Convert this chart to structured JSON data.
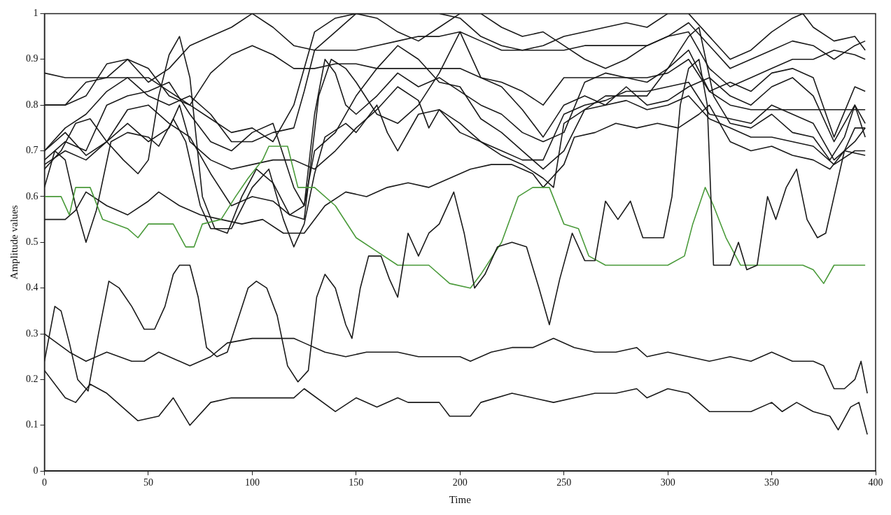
{
  "chart_data": {
    "type": "line",
    "xlabel": "Time",
    "ylabel": "Amplitude values",
    "xlim": [
      0,
      400
    ],
    "ylim": [
      0,
      1
    ],
    "xticks": [
      0,
      50,
      100,
      150,
      200,
      250,
      300,
      350,
      400
    ],
    "yticks": [
      0,
      0.1,
      0.2,
      0.3,
      0.4,
      0.5,
      0.6,
      0.7,
      0.8,
      0.9,
      1
    ],
    "grid": false,
    "legend": false,
    "marker": "none",
    "line_style": "solid",
    "series": [
      {
        "color": "#1a1a1a",
        "x": [
          0,
          10,
          15,
          22,
          30,
          45,
          55,
          62,
          70,
          80,
          90,
          100,
          110,
          120,
          125,
          140,
          150,
          160,
          170,
          175,
          190,
          195,
          205,
          210,
          225,
          235,
          245,
          255,
          265,
          275,
          285,
          290,
          300,
          310,
          320,
          330,
          340,
          350,
          355,
          362,
          370,
          378,
          382,
          388,
          392,
          396
        ],
        "values": [
          0.22,
          0.16,
          0.15,
          0.19,
          0.17,
          0.11,
          0.12,
          0.16,
          0.1,
          0.15,
          0.16,
          0.16,
          0.16,
          0.16,
          0.18,
          0.13,
          0.16,
          0.14,
          0.16,
          0.15,
          0.15,
          0.12,
          0.12,
          0.15,
          0.17,
          0.16,
          0.15,
          0.16,
          0.17,
          0.17,
          0.18,
          0.16,
          0.18,
          0.17,
          0.13,
          0.13,
          0.13,
          0.15,
          0.13,
          0.15,
          0.13,
          0.12,
          0.09,
          0.14,
          0.15,
          0.08
        ]
      },
      {
        "color": "#1a1a1a",
        "x": [
          0,
          12,
          20,
          30,
          42,
          48,
          55,
          70,
          80,
          88,
          100,
          110,
          120,
          125,
          135,
          145,
          155,
          170,
          180,
          190,
          200,
          205,
          215,
          225,
          235,
          245,
          255,
          265,
          275,
          285,
          290,
          300,
          310,
          320,
          330,
          340,
          350,
          360,
          370,
          375,
          380,
          385,
          390,
          393,
          396
        ],
        "values": [
          0.3,
          0.26,
          0.24,
          0.26,
          0.24,
          0.24,
          0.26,
          0.23,
          0.25,
          0.28,
          0.29,
          0.29,
          0.29,
          0.28,
          0.26,
          0.25,
          0.26,
          0.26,
          0.25,
          0.25,
          0.25,
          0.24,
          0.26,
          0.27,
          0.27,
          0.29,
          0.27,
          0.26,
          0.26,
          0.27,
          0.25,
          0.26,
          0.25,
          0.24,
          0.25,
          0.24,
          0.26,
          0.24,
          0.24,
          0.23,
          0.18,
          0.18,
          0.2,
          0.24,
          0.17
        ]
      },
      {
        "color": "#1a1a1a",
        "x": [
          0,
          5,
          8,
          12,
          16,
          21,
          26,
          31,
          36,
          42,
          48,
          53,
          58,
          62,
          65,
          70,
          74,
          78,
          83,
          88,
          93,
          98,
          102,
          107,
          112,
          117,
          122,
          127,
          131,
          135,
          140,
          145,
          148,
          152,
          156,
          162,
          166,
          170,
          175,
          180,
          185,
          190,
          197,
          202,
          207,
          212,
          218,
          225,
          232,
          238,
          243,
          248,
          254,
          260,
          265,
          270,
          276,
          282,
          288,
          298,
          302,
          306,
          310,
          315,
          319,
          322,
          330,
          334,
          338,
          343,
          348,
          352,
          357,
          362,
          367,
          372,
          376,
          380,
          385,
          390,
          395
        ],
        "values": [
          0.24,
          0.36,
          0.35,
          0.28,
          0.2,
          0.175,
          0.3,
          0.415,
          0.4,
          0.36,
          0.31,
          0.31,
          0.36,
          0.43,
          0.45,
          0.45,
          0.38,
          0.27,
          0.25,
          0.26,
          0.33,
          0.4,
          0.415,
          0.4,
          0.34,
          0.23,
          0.195,
          0.22,
          0.38,
          0.43,
          0.4,
          0.32,
          0.29,
          0.4,
          0.47,
          0.47,
          0.42,
          0.38,
          0.52,
          0.47,
          0.52,
          0.54,
          0.61,
          0.52,
          0.4,
          0.43,
          0.49,
          0.5,
          0.49,
          0.4,
          0.32,
          0.42,
          0.52,
          0.46,
          0.46,
          0.59,
          0.55,
          0.59,
          0.51,
          0.51,
          0.6,
          0.8,
          0.88,
          0.9,
          0.8,
          0.45,
          0.45,
          0.5,
          0.44,
          0.45,
          0.6,
          0.55,
          0.62,
          0.66,
          0.55,
          0.51,
          0.52,
          0.6,
          0.7,
          0.75,
          0.75
        ]
      },
      {
        "color": "#4a9a3a",
        "x": [
          0,
          8,
          12,
          15,
          22,
          28,
          40,
          45,
          50,
          62,
          68,
          72,
          76,
          85,
          92,
          98,
          105,
          108,
          117,
          122,
          130,
          140,
          150,
          160,
          170,
          185,
          195,
          205,
          210,
          220,
          228,
          235,
          243,
          250,
          257,
          262,
          270,
          280,
          290,
          300,
          308,
          312,
          318,
          322,
          328,
          335,
          350,
          365,
          370,
          375,
          380,
          390,
          395
        ],
        "values": [
          0.6,
          0.6,
          0.56,
          0.62,
          0.62,
          0.55,
          0.53,
          0.51,
          0.54,
          0.54,
          0.49,
          0.49,
          0.54,
          0.55,
          0.6,
          0.64,
          0.68,
          0.71,
          0.71,
          0.62,
          0.62,
          0.58,
          0.51,
          0.48,
          0.45,
          0.45,
          0.41,
          0.4,
          0.43,
          0.5,
          0.6,
          0.62,
          0.62,
          0.54,
          0.53,
          0.47,
          0.45,
          0.45,
          0.45,
          0.45,
          0.47,
          0.54,
          0.62,
          0.58,
          0.51,
          0.45,
          0.45,
          0.45,
          0.44,
          0.41,
          0.45,
          0.45,
          0.45
        ]
      },
      {
        "color": "#1a1a1a",
        "x": [
          0,
          10,
          15,
          20,
          30,
          40,
          50,
          55,
          65,
          75,
          85,
          95,
          105,
          115,
          125,
          135,
          145,
          155,
          165,
          175,
          185,
          195,
          205,
          215,
          225,
          235,
          240,
          250,
          255,
          265,
          275,
          285,
          295,
          305,
          315,
          320,
          330,
          340,
          350,
          360,
          370,
          378,
          385,
          395
        ],
        "values": [
          0.55,
          0.55,
          0.57,
          0.61,
          0.58,
          0.56,
          0.59,
          0.61,
          0.58,
          0.56,
          0.55,
          0.54,
          0.55,
          0.52,
          0.52,
          0.58,
          0.61,
          0.6,
          0.62,
          0.63,
          0.62,
          0.64,
          0.66,
          0.67,
          0.67,
          0.65,
          0.62,
          0.67,
          0.73,
          0.74,
          0.76,
          0.75,
          0.76,
          0.75,
          0.78,
          0.8,
          0.72,
          0.7,
          0.71,
          0.69,
          0.68,
          0.66,
          0.7,
          0.69
        ]
      },
      {
        "color": "#1a1a1a",
        "x": [
          0,
          10,
          20,
          30,
          40,
          50,
          60,
          70,
          80,
          90,
          100,
          110,
          120,
          130,
          140,
          150,
          160,
          170,
          180,
          190,
          200,
          210,
          220,
          230,
          240,
          250,
          260,
          270,
          280,
          290,
          300,
          310,
          320,
          330,
          340,
          350,
          360,
          365,
          370,
          380,
          390,
          395
        ],
        "values": [
          0.8,
          0.8,
          0.85,
          0.86,
          0.9,
          0.85,
          0.88,
          0.93,
          0.95,
          0.97,
          1.0,
          0.97,
          0.93,
          0.92,
          0.96,
          1.0,
          1.0,
          1.0,
          1.0,
          1.0,
          0.99,
          0.95,
          0.93,
          0.92,
          0.93,
          0.95,
          0.96,
          0.97,
          0.98,
          0.97,
          1.0,
          1.0,
          0.95,
          0.9,
          0.92,
          0.96,
          0.99,
          1.0,
          0.97,
          0.94,
          0.95,
          0.92
        ]
      },
      {
        "color": "#1a1a1a",
        "x": [
          0,
          10,
          20,
          30,
          40,
          50,
          60,
          70,
          80,
          90,
          100,
          110,
          120,
          130,
          140,
          150,
          160,
          170,
          180,
          190,
          200,
          210,
          220,
          230,
          240,
          250,
          260,
          270,
          280,
          290,
          300,
          310,
          320,
          330,
          340,
          350,
          360,
          370,
          380,
          390,
          395
        ],
        "values": [
          0.8,
          0.8,
          0.82,
          0.89,
          0.9,
          0.88,
          0.82,
          0.8,
          0.87,
          0.91,
          0.93,
          0.91,
          0.88,
          0.88,
          0.89,
          0.89,
          0.88,
          0.88,
          0.88,
          0.88,
          0.88,
          0.86,
          0.85,
          0.83,
          0.8,
          0.86,
          0.86,
          0.86,
          0.86,
          0.86,
          0.87,
          0.9,
          0.83,
          0.8,
          0.79,
          0.79,
          0.79,
          0.79,
          0.79,
          0.79,
          0.79
        ]
      },
      {
        "color": "#1a1a1a",
        "x": [
          0,
          10,
          20,
          30,
          40,
          50,
          60,
          70,
          80,
          90,
          100,
          110,
          120,
          125,
          130,
          140,
          150,
          160,
          170,
          180,
          190,
          200,
          210,
          220,
          230,
          240,
          250,
          260,
          270,
          280,
          290,
          300,
          310,
          320,
          330,
          340,
          350,
          360,
          370,
          380,
          390,
          395
        ],
        "values": [
          0.7,
          0.75,
          0.78,
          0.83,
          0.86,
          0.82,
          0.8,
          0.82,
          0.78,
          0.72,
          0.72,
          0.74,
          0.75,
          0.83,
          0.92,
          0.92,
          0.92,
          0.93,
          0.94,
          0.95,
          0.95,
          0.96,
          0.94,
          0.92,
          0.92,
          0.92,
          0.92,
          0.93,
          0.93,
          0.93,
          0.93,
          0.95,
          0.96,
          0.88,
          0.84,
          0.86,
          0.88,
          0.9,
          0.9,
          0.92,
          0.91,
          0.9
        ]
      },
      {
        "color": "#1a1a1a",
        "x": [
          0,
          10,
          20,
          30,
          40,
          50,
          60,
          70,
          80,
          90,
          100,
          110,
          120,
          125,
          130,
          135,
          140,
          145,
          150,
          160,
          170,
          180,
          190,
          200,
          210,
          220,
          230,
          240,
          250,
          260,
          270,
          280,
          290,
          300,
          310,
          320,
          330,
          340,
          350,
          360,
          370,
          380,
          390,
          395
        ],
        "values": [
          0.68,
          0.72,
          0.7,
          0.8,
          0.82,
          0.83,
          0.85,
          0.78,
          0.72,
          0.7,
          0.74,
          0.76,
          0.62,
          0.58,
          0.78,
          0.9,
          0.87,
          0.8,
          0.78,
          0.82,
          0.87,
          0.84,
          0.86,
          0.83,
          0.8,
          0.78,
          0.74,
          0.72,
          0.74,
          0.85,
          0.87,
          0.86,
          0.85,
          0.88,
          0.92,
          0.83,
          0.85,
          0.83,
          0.87,
          0.88,
          0.86,
          0.73,
          0.84,
          0.83
        ]
      },
      {
        "color": "#1a1a1a",
        "x": [
          0,
          10,
          20,
          30,
          40,
          50,
          60,
          65,
          70,
          80,
          90,
          100,
          110,
          120,
          130,
          140,
          150,
          160,
          170,
          180,
          185,
          190,
          200,
          210,
          220,
          230,
          240,
          250,
          260,
          270,
          280,
          290,
          300,
          310,
          320,
          330,
          340,
          350,
          360,
          370,
          380,
          390,
          395
        ],
        "values": [
          0.7,
          0.74,
          0.69,
          0.72,
          0.76,
          0.72,
          0.75,
          0.8,
          0.72,
          0.68,
          0.66,
          0.67,
          0.68,
          0.68,
          0.66,
          0.7,
          0.75,
          0.79,
          0.84,
          0.81,
          0.75,
          0.79,
          0.76,
          0.72,
          0.7,
          0.68,
          0.68,
          0.78,
          0.8,
          0.81,
          0.83,
          0.83,
          0.84,
          0.85,
          0.78,
          0.77,
          0.76,
          0.8,
          0.78,
          0.76,
          0.68,
          0.72,
          0.75
        ]
      },
      {
        "color": "#1a1a1a",
        "x": [
          0,
          5,
          10,
          15,
          20,
          25,
          32,
          40,
          50,
          55,
          62,
          68,
          75,
          80,
          90,
          100,
          108,
          115,
          120,
          125,
          130,
          135,
          145,
          150,
          160,
          165,
          170,
          180,
          190,
          200,
          210,
          220,
          230,
          240,
          245,
          250,
          260,
          270,
          280,
          290,
          300,
          310,
          315,
          322,
          330,
          340,
          350,
          360,
          370,
          378,
          385,
          390,
          395
        ],
        "values": [
          0.62,
          0.7,
          0.68,
          0.58,
          0.5,
          0.57,
          0.72,
          0.74,
          0.73,
          0.71,
          0.77,
          0.72,
          0.58,
          0.53,
          0.53,
          0.62,
          0.66,
          0.55,
          0.49,
          0.54,
          0.65,
          0.73,
          0.76,
          0.74,
          0.8,
          0.74,
          0.7,
          0.78,
          0.79,
          0.74,
          0.72,
          0.69,
          0.67,
          0.64,
          0.62,
          0.76,
          0.79,
          0.82,
          0.82,
          0.82,
          0.88,
          0.95,
          0.97,
          0.82,
          0.76,
          0.75,
          0.78,
          0.74,
          0.73,
          0.68,
          0.73,
          0.8,
          0.73
        ]
      },
      {
        "color": "#1a1a1a",
        "x": [
          0,
          8,
          15,
          22,
          30,
          38,
          45,
          50,
          55,
          60,
          65,
          70,
          76,
          82,
          88,
          95,
          102,
          110,
          118,
          125,
          132,
          138,
          145,
          150,
          160,
          170,
          180,
          190,
          200,
          210,
          220,
          230,
          240,
          250,
          260,
          270,
          280,
          290,
          300,
          310,
          320,
          330,
          340,
          350,
          360,
          370,
          380,
          390,
          395
        ],
        "values": [
          0.66,
          0.7,
          0.76,
          0.77,
          0.72,
          0.68,
          0.65,
          0.68,
          0.82,
          0.91,
          0.95,
          0.86,
          0.6,
          0.53,
          0.52,
          0.6,
          0.66,
          0.63,
          0.56,
          0.55,
          0.82,
          0.9,
          0.88,
          0.85,
          0.78,
          0.76,
          0.8,
          0.87,
          0.96,
          0.86,
          0.84,
          0.79,
          0.73,
          0.8,
          0.82,
          0.8,
          0.84,
          0.8,
          0.81,
          0.84,
          0.86,
          0.82,
          0.8,
          0.84,
          0.86,
          0.82,
          0.72,
          0.8,
          0.76
        ]
      },
      {
        "color": "#1a1a1a",
        "x": [
          0,
          10,
          20,
          30,
          40,
          50,
          60,
          70,
          80,
          90,
          100,
          110,
          120,
          130,
          140,
          150,
          160,
          170,
          180,
          190,
          200,
          210,
          220,
          230,
          240,
          250,
          260,
          270,
          280,
          290,
          300,
          310,
          320,
          330,
          340,
          350,
          360,
          370,
          380,
          390,
          395
        ],
        "values": [
          0.87,
          0.86,
          0.86,
          0.86,
          0.86,
          0.86,
          0.83,
          0.8,
          0.77,
          0.74,
          0.75,
          0.72,
          0.8,
          0.96,
          0.99,
          1.0,
          0.99,
          0.96,
          0.94,
          0.97,
          1.0,
          1.0,
          0.97,
          0.95,
          0.96,
          0.93,
          0.9,
          0.88,
          0.9,
          0.93,
          0.95,
          0.98,
          0.93,
          0.88,
          0.9,
          0.92,
          0.94,
          0.93,
          0.9,
          0.93,
          0.94
        ]
      },
      {
        "color": "#1a1a1a",
        "x": [
          0,
          10,
          20,
          30,
          40,
          50,
          60,
          70,
          80,
          90,
          100,
          110,
          118,
          125,
          130,
          140,
          150,
          160,
          170,
          180,
          190,
          200,
          210,
          220,
          230,
          240,
          250,
          260,
          270,
          280,
          290,
          300,
          310,
          320,
          330,
          340,
          350,
          360,
          370,
          380,
          390,
          395
        ],
        "values": [
          0.67,
          0.7,
          0.68,
          0.72,
          0.79,
          0.8,
          0.76,
          0.73,
          0.65,
          0.58,
          0.6,
          0.59,
          0.56,
          0.58,
          0.7,
          0.74,
          0.82,
          0.88,
          0.93,
          0.9,
          0.85,
          0.84,
          0.77,
          0.74,
          0.7,
          0.66,
          0.7,
          0.79,
          0.8,
          0.81,
          0.79,
          0.8,
          0.82,
          0.77,
          0.75,
          0.73,
          0.73,
          0.72,
          0.71,
          0.67,
          0.7,
          0.7
        ]
      }
    ]
  }
}
